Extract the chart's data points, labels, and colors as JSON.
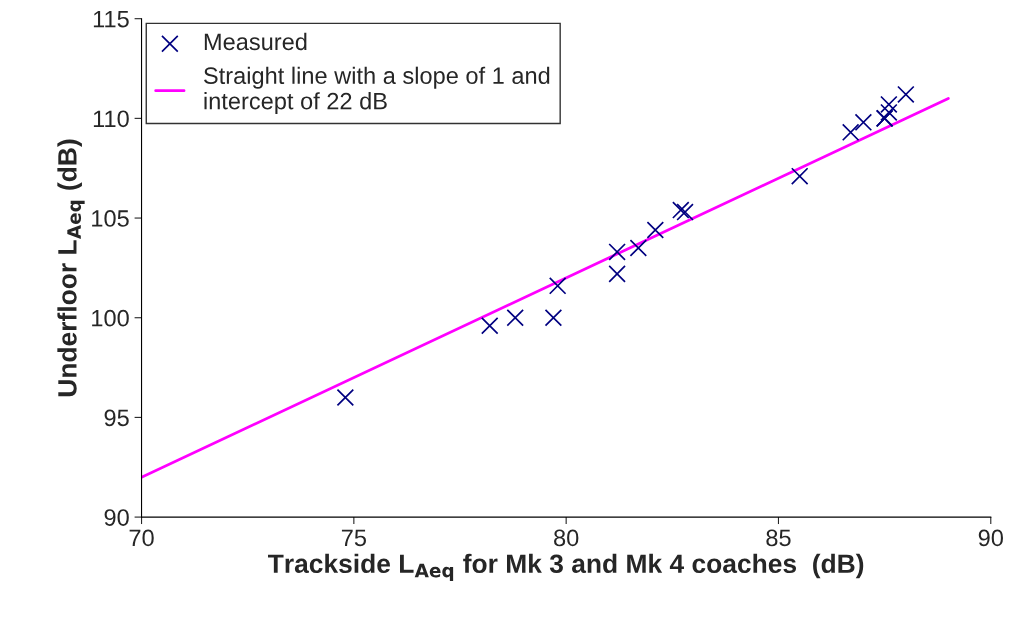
{
  "chart_data": {
    "type": "scatter",
    "xlabel": "Trackside L$_{Aeq}$ for Mk 3 and Mk 4 coaches  (dB)",
    "ylabel": "Underfloor L$_{Aeq}$ (dB)",
    "series": [
      {
        "name": "Measured",
        "color": "#000080",
        "marker": "cross",
        "x": [
          74.8,
          78.2,
          78.8,
          79.7,
          79.8,
          81.2,
          81.2,
          81.7,
          82.1,
          82.7,
          82.8,
          85.5,
          86.7,
          87.0,
          87.5,
          87.5,
          87.6,
          87.6,
          88.0
        ],
        "values": [
          96.0,
          99.6,
          100.0,
          100.0,
          101.6,
          102.2,
          103.3,
          103.5,
          104.4,
          105.4,
          105.3,
          107.1,
          109.3,
          109.8,
          110.0,
          110.0,
          110.3,
          110.7,
          111.2
        ]
      },
      {
        "name": "Straight line with a slope of 1 and\nintercept of 22 dB",
        "type": "line",
        "color": "#ff00ff",
        "marker": "none",
        "x": [
          70,
          89
        ],
        "values": [
          92,
          111
        ]
      }
    ],
    "xlim": [
      70,
      90
    ],
    "xticks": [
      70,
      75,
      80,
      85,
      90
    ],
    "ylim": [
      90,
      115
    ],
    "yticks": [
      90,
      95,
      100,
      105,
      110,
      115
    ],
    "grid": false,
    "legend": "top left"
  }
}
